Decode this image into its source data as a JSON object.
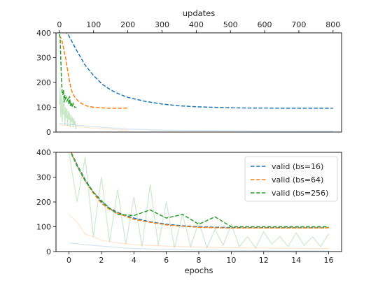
{
  "chart_data": [
    {
      "type": "line",
      "panel": "top",
      "xlabel": "updates",
      "xaxis_position": "top",
      "ylabel": "",
      "xlim": [
        -10,
        825
      ],
      "ylim": [
        0,
        400
      ],
      "xticks": [
        "0",
        "100",
        "200",
        "300",
        "400",
        "500",
        "600",
        "700",
        "800"
      ],
      "yticks": [
        "0",
        "100",
        "200",
        "300",
        "400"
      ],
      "grid": false,
      "series": [
        {
          "name": "valid (bs=16)",
          "style": "dashed",
          "color": "#1f77b4",
          "x": [
            0,
            25,
            50,
            75,
            100,
            125,
            150,
            175,
            200,
            250,
            300,
            350,
            400,
            450,
            500,
            550,
            600,
            650,
            700,
            750,
            800
          ],
          "y": [
            420,
            395,
            330,
            270,
            228,
            193,
            170,
            153,
            140,
            124,
            113,
            106,
            102,
            100,
            98,
            97,
            97,
            96,
            96,
            96,
            96
          ]
        },
        {
          "name": "valid (bs=64)",
          "style": "dashed",
          "color": "#ff7f0e",
          "x": [
            0,
            6,
            12,
            18,
            24,
            30,
            36,
            45,
            55,
            65,
            80,
            100,
            120,
            140,
            160,
            180,
            200
          ],
          "y": [
            390,
            375,
            340,
            300,
            250,
            200,
            165,
            140,
            125,
            115,
            105,
            100,
            98,
            96,
            96,
            96,
            97
          ]
        },
        {
          "name": "valid (bs=256)",
          "style": "dashed",
          "color": "#2ca02c",
          "x": [
            0,
            2,
            4,
            6,
            8,
            10,
            12,
            14,
            16,
            18,
            20,
            22,
            24,
            26,
            28,
            30,
            32,
            34,
            36,
            38,
            40,
            45,
            50
          ],
          "y": [
            395,
            380,
            300,
            210,
            160,
            150,
            170,
            120,
            150,
            135,
            140,
            125,
            130,
            135,
            110,
            145,
            105,
            120,
            110,
            100,
            115,
            100,
            100
          ]
        },
        {
          "name": "train (bs=16)",
          "style": "solid",
          "color": "#1f77b4",
          "opacity": 0.18,
          "x": [
            0,
            50,
            100,
            150,
            200,
            300,
            400,
            500,
            600,
            700,
            800
          ],
          "y": [
            35,
            28,
            22,
            17,
            12,
            8,
            6,
            5,
            4,
            3,
            3
          ]
        },
        {
          "name": "train (bs=64)",
          "style": "solid",
          "color": "#ff7f0e",
          "opacity": 0.18,
          "x": [
            0,
            20,
            40,
            60,
            80,
            100,
            120,
            140,
            160,
            180,
            200
          ],
          "y": [
            30,
            27,
            24,
            20,
            18,
            16,
            14,
            12,
            10,
            9,
            8
          ]
        },
        {
          "name": "train (bs=256)",
          "style": "solid",
          "color": "#2ca02c",
          "opacity": 0.25,
          "x": [
            0,
            2,
            4,
            6,
            8,
            10,
            12,
            14,
            16,
            18,
            20,
            22,
            24,
            26,
            28,
            30,
            32,
            34,
            36,
            38,
            40,
            42,
            44,
            46,
            48,
            50
          ],
          "y": [
            110,
            180,
            60,
            150,
            40,
            130,
            70,
            120,
            30,
            100,
            55,
            95,
            25,
            85,
            50,
            75,
            20,
            70,
            40,
            60,
            18,
            55,
            30,
            45,
            12,
            20
          ]
        }
      ]
    },
    {
      "type": "line",
      "panel": "bottom",
      "xlabel": "epochs",
      "ylabel": "",
      "xlim": [
        -0.8,
        16.8
      ],
      "ylim": [
        0,
        400
      ],
      "xticks": [
        "0",
        "2",
        "4",
        "6",
        "8",
        "10",
        "12",
        "14",
        "16"
      ],
      "yticks": [
        "0",
        "100",
        "200",
        "300",
        "400"
      ],
      "grid": false,
      "legend": {
        "position": "top-right",
        "entries": [
          "valid (bs=16)",
          "valid (bs=64)",
          "valid (bs=256)"
        ]
      },
      "series": [
        {
          "name": "valid (bs=16)",
          "style": "dashed",
          "color": "#1f77b4",
          "x": [
            0,
            0.5,
            1,
            1.5,
            2,
            2.5,
            3,
            3.5,
            4,
            5,
            6,
            7,
            8,
            9,
            10,
            11,
            12,
            13,
            14,
            15,
            16
          ],
          "y": [
            420,
            350,
            290,
            240,
            200,
            175,
            158,
            145,
            135,
            120,
            110,
            104,
            100,
            98,
            97,
            96,
            96,
            96,
            96,
            96,
            96
          ]
        },
        {
          "name": "valid (bs=64)",
          "style": "dashed",
          "color": "#ff7f0e",
          "x": [
            0,
            0.5,
            1,
            1.5,
            2,
            2.5,
            3,
            3.5,
            4,
            5,
            6,
            7,
            8,
            9,
            10,
            11,
            12,
            13,
            14,
            15,
            16
          ],
          "y": [
            420,
            345,
            285,
            235,
            195,
            170,
            155,
            142,
            130,
            118,
            108,
            102,
            98,
            96,
            95,
            95,
            95,
            95,
            95,
            95,
            96
          ]
        },
        {
          "name": "valid (bs=256)",
          "style": "dashed",
          "color": "#2ca02c",
          "x": [
            0,
            0.5,
            1,
            1.5,
            2,
            2.5,
            3,
            4,
            5,
            6,
            7,
            8,
            9,
            10,
            11,
            12,
            13,
            14,
            15,
            16
          ],
          "y": [
            415,
            345,
            285,
            240,
            205,
            175,
            150,
            145,
            168,
            135,
            150,
            110,
            140,
            100,
            100,
            100,
            100,
            100,
            100,
            100
          ]
        },
        {
          "name": "train (bs=16)",
          "style": "solid",
          "color": "#1f77b4",
          "opacity": 0.18,
          "x": [
            0,
            1,
            2,
            3,
            4,
            6,
            8,
            10,
            12,
            14,
            16
          ],
          "y": [
            35,
            28,
            22,
            17,
            12,
            8,
            6,
            5,
            4,
            3,
            3
          ]
        },
        {
          "name": "train (bs=64)",
          "style": "solid",
          "color": "#ff7f0e",
          "opacity": 0.2,
          "x": [
            0,
            0.5,
            1,
            1.5,
            2,
            3,
            4,
            6,
            8,
            10,
            12,
            14,
            16
          ],
          "y": [
            150,
            120,
            70,
            60,
            45,
            35,
            28,
            22,
            18,
            15,
            14,
            13,
            12
          ]
        },
        {
          "name": "train (bs=256)",
          "style": "solid",
          "color": "#2ca02c",
          "opacity": 0.22,
          "x": [
            0,
            0.5,
            1,
            1.5,
            2,
            2.5,
            3,
            3.5,
            4,
            4.5,
            5,
            5.5,
            6,
            6.5,
            7,
            7.5,
            8,
            8.5,
            9,
            9.5,
            10,
            10.5,
            11,
            11.5,
            12,
            12.5,
            13,
            13.5,
            14,
            14.5,
            15,
            15.5,
            16
          ],
          "y": [
            400,
            200,
            380,
            60,
            300,
            40,
            250,
            30,
            220,
            20,
            270,
            25,
            200,
            15,
            150,
            20,
            120,
            15,
            90,
            25,
            110,
            20,
            60,
            15,
            80,
            30,
            60,
            20,
            75,
            25,
            60,
            20,
            70
          ]
        }
      ]
    }
  ]
}
